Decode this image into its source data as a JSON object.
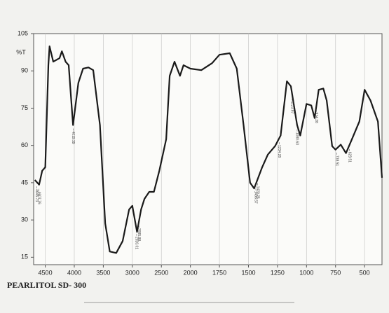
{
  "chart_data": {
    "type": "line",
    "title": "PEARLITOL SD- 300",
    "y_label": "%T",
    "xlim": [
      4700,
      350
    ],
    "ylim": [
      12,
      105
    ],
    "xticks": [
      4500,
      4000,
      3500,
      3000,
      2500,
      2000,
      1750,
      1500,
      1250,
      1000,
      750,
      500
    ],
    "yticks": [
      15,
      30,
      45,
      60,
      75,
      90,
      105
    ],
    "x_grid": true,
    "color": "#1a1a1a",
    "x": [
      4680,
      4606,
      4553,
      4500,
      4447,
      4426,
      4362,
      4255,
      4213,
      4149,
      4096,
      4021,
      3930,
      3849,
      3756,
      3674,
      3558,
      3467,
      3389,
      3278,
      3167,
      3056,
      3000,
      2919,
      2849,
      2791,
      2709,
      2628,
      2535,
      2417,
      2357,
      2274,
      2179,
      2119,
      2000,
      1906,
      1813,
      1750,
      1661,
      1601,
      1542,
      1486,
      1451,
      1382,
      1333,
      1271,
      1223,
      1169,
      1135,
      1081,
      1054,
      1000,
      959,
      930,
      895,
      855,
      826,
      779,
      750,
      705,
      660,
      609,
      545,
      500,
      449,
      385,
      350
    ],
    "values": [
      46.1,
      44.2,
      49.8,
      51.2,
      92.3,
      99.9,
      93.7,
      95.1,
      97.9,
      93.7,
      92.3,
      68.2,
      85.2,
      90.9,
      91.4,
      90.3,
      68.2,
      28.6,
      17.3,
      16.7,
      21.5,
      34.2,
      35.7,
      25.2,
      34.2,
      38.5,
      41.3,
      41.3,
      49.8,
      62.5,
      88.0,
      93.7,
      88.0,
      92.3,
      90.9,
      90.3,
      93.1,
      96.5,
      97.1,
      90.9,
      68.2,
      45.0,
      42.7,
      51.2,
      56.3,
      59.7,
      64.0,
      85.8,
      83.8,
      68.2,
      64.0,
      76.7,
      76.1,
      71.0,
      82.4,
      82.9,
      78.1,
      59.7,
      58.3,
      60.3,
      56.9,
      62.5,
      69.6,
      82.4,
      78.1,
      69.6,
      47.0
    ],
    "peaks": [
      4645.73,
      4607.76,
      4019.39,
      2926.01,
      2885.88,
      1436.57,
      1420.25,
      1234.28,
      1123.97,
      1080.63,
      914.28,
      738.51,
      629.51
    ]
  }
}
